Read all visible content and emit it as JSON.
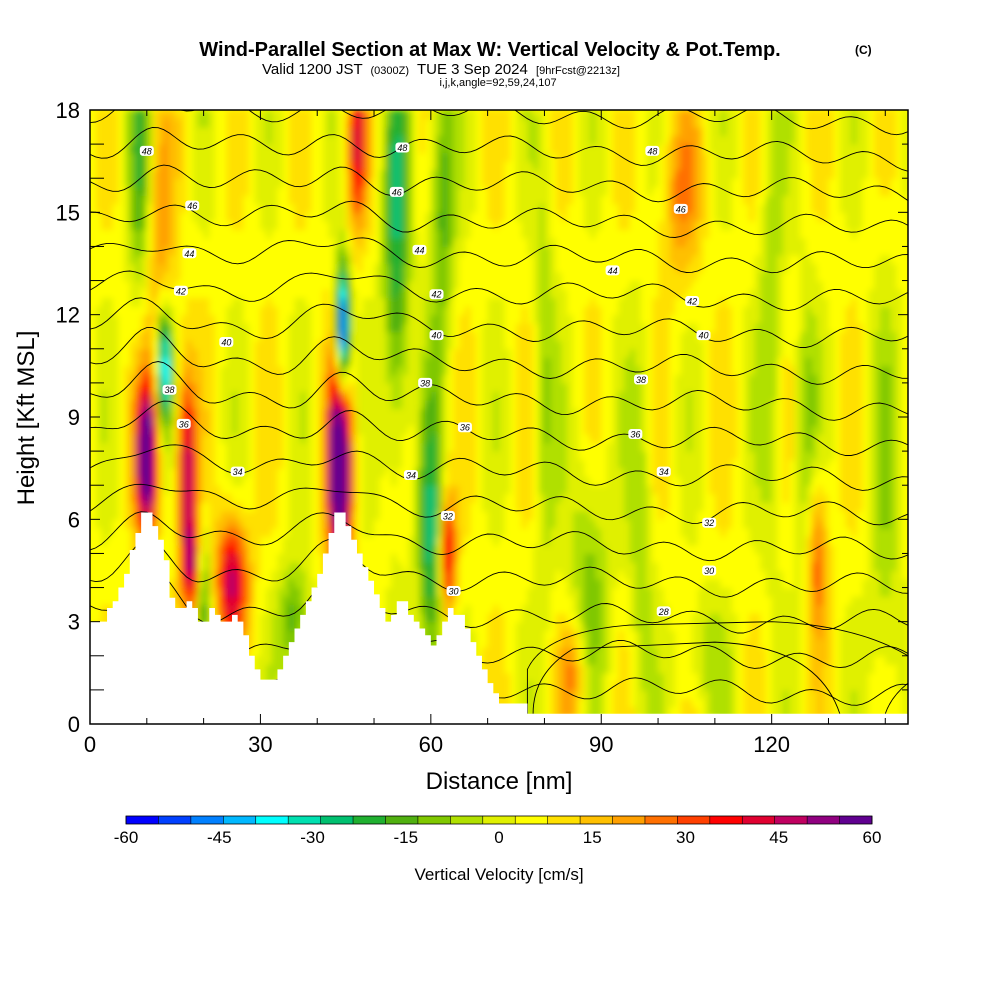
{
  "chart_data": {
    "type": "heatmap",
    "title": "Wind-Parallel Section at Max W: Vertical Velocity & Pot.Temp.",
    "title_mark": "(C)",
    "subtitle_prefix": "Valid 1200 JST",
    "subtitle_utc": "(0300Z)",
    "subtitle_date": "TUE 3 Sep 2024",
    "subtitle_fcst": "[9hrFcst@2213z]",
    "meta_line": "i,j,k,angle=92,59,24,107",
    "xlabel": "Distance [nm]",
    "ylabel": "Height [Kft MSL]",
    "xlim": [
      0,
      144
    ],
    "ylim": [
      0,
      18
    ],
    "x_ticks": [
      "0",
      "30",
      "60",
      "90",
      "120"
    ],
    "x_tick_values": [
      0,
      30,
      60,
      90,
      120
    ],
    "y_ticks": [
      "0",
      "3",
      "6",
      "9",
      "12",
      "15",
      "18"
    ],
    "y_tick_values": [
      0,
      3,
      6,
      9,
      12,
      15,
      18
    ],
    "colorbar": {
      "label": "Vertical Velocity [cm/s]",
      "min": -60,
      "max": 60,
      "tick_labels": [
        "-60",
        "-45",
        "-30",
        "-15",
        "0",
        "15",
        "30",
        "45",
        "60"
      ],
      "tick_values": [
        -60,
        -45,
        -30,
        -15,
        0,
        15,
        30,
        45,
        60
      ],
      "colors": [
        "#0000ff",
        "#0040ff",
        "#0080ff",
        "#00b8ff",
        "#00ffff",
        "#00e0b0",
        "#00c070",
        "#20b030",
        "#50b010",
        "#80c800",
        "#b0e000",
        "#e0f000",
        "#ffff00",
        "#ffe000",
        "#ffc000",
        "#ffa000",
        "#ff7000",
        "#ff4000",
        "#ff0000",
        "#e00030",
        "#c00060",
        "#900080",
        "#600090"
      ]
    },
    "terrain": [
      [
        0,
        3
      ],
      [
        2,
        3
      ],
      [
        3,
        3.4
      ],
      [
        4,
        3.6
      ],
      [
        5,
        4
      ],
      [
        6,
        4.4
      ],
      [
        7,
        5.1
      ],
      [
        8,
        5.6
      ],
      [
        9,
        6.2
      ],
      [
        10,
        6.2
      ],
      [
        11,
        5.8
      ],
      [
        12,
        5.4
      ],
      [
        13,
        4.8
      ],
      [
        14,
        3.7
      ],
      [
        15,
        3.4
      ],
      [
        16,
        3.4
      ],
      [
        17,
        3.6
      ],
      [
        18,
        3.4
      ],
      [
        19,
        3
      ],
      [
        20,
        3
      ],
      [
        21,
        3.4
      ],
      [
        22,
        3.2
      ],
      [
        23,
        3
      ],
      [
        24,
        3
      ],
      [
        25,
        3.2
      ],
      [
        26,
        3
      ],
      [
        27,
        2.6
      ],
      [
        28,
        2
      ],
      [
        29,
        1.6
      ],
      [
        30,
        1.3
      ],
      [
        31,
        1.3
      ],
      [
        32,
        1.3
      ],
      [
        33,
        1.6
      ],
      [
        34,
        2
      ],
      [
        35,
        2.4
      ],
      [
        36,
        2.8
      ],
      [
        37,
        3.2
      ],
      [
        38,
        3.6
      ],
      [
        39,
        4
      ],
      [
        40,
        4.4
      ],
      [
        41,
        5
      ],
      [
        42,
        5.6
      ],
      [
        43,
        6.2
      ],
      [
        44,
        6.2
      ],
      [
        45,
        5.8
      ],
      [
        46,
        5.4
      ],
      [
        47,
        5
      ],
      [
        48,
        4.6
      ],
      [
        49,
        4.2
      ],
      [
        50,
        3.8
      ],
      [
        51,
        3.4
      ],
      [
        52,
        3
      ],
      [
        53,
        3.2
      ],
      [
        54,
        3.6
      ],
      [
        55,
        3.6
      ],
      [
        56,
        3.2
      ],
      [
        57,
        3
      ],
      [
        58,
        2.8
      ],
      [
        59,
        2.6
      ],
      [
        60,
        2.3
      ],
      [
        61,
        2.6
      ],
      [
        62,
        3
      ],
      [
        63,
        3.4
      ],
      [
        64,
        3.2
      ],
      [
        65,
        3.2
      ],
      [
        66,
        2.8
      ],
      [
        67,
        2.4
      ],
      [
        68,
        2
      ],
      [
        69,
        1.6
      ],
      [
        70,
        1.2
      ],
      [
        71,
        0.9
      ],
      [
        72,
        0.6
      ],
      [
        73,
        0.6
      ],
      [
        74,
        0.6
      ],
      [
        75,
        0.6
      ],
      [
        76,
        0.6
      ],
      [
        77,
        0.3
      ],
      [
        144,
        0.3
      ]
    ],
    "theta_labels": [
      {
        "value": "48",
        "x": 10,
        "y": 16.8
      },
      {
        "value": "48",
        "x": 55,
        "y": 16.9
      },
      {
        "value": "48",
        "x": 99,
        "y": 16.8
      },
      {
        "value": "46",
        "x": 18,
        "y": 15.2
      },
      {
        "value": "46",
        "x": 54,
        "y": 15.6
      },
      {
        "value": "46",
        "x": 104,
        "y": 15.1
      },
      {
        "value": "44",
        "x": 17.5,
        "y": 13.8
      },
      {
        "value": "44",
        "x": 58,
        "y": 13.9
      },
      {
        "value": "44",
        "x": 92,
        "y": 13.3
      },
      {
        "value": "42",
        "x": 16,
        "y": 12.7
      },
      {
        "value": "42",
        "x": 61,
        "y": 12.6
      },
      {
        "value": "42",
        "x": 106,
        "y": 12.4
      },
      {
        "value": "40",
        "x": 24,
        "y": 11.2
      },
      {
        "value": "40",
        "x": 61,
        "y": 11.4
      },
      {
        "value": "40",
        "x": 108,
        "y": 11.4
      },
      {
        "value": "38",
        "x": 14,
        "y": 9.8
      },
      {
        "value": "38",
        "x": 59,
        "y": 10.0
      },
      {
        "value": "38",
        "x": 97,
        "y": 10.1
      },
      {
        "value": "36",
        "x": 16.5,
        "y": 8.8
      },
      {
        "value": "36",
        "x": 66,
        "y": 8.7
      },
      {
        "value": "36",
        "x": 96,
        "y": 8.5
      },
      {
        "value": "34",
        "x": 26,
        "y": 7.4
      },
      {
        "value": "34",
        "x": 56.5,
        "y": 7.3
      },
      {
        "value": "34",
        "x": 101,
        "y": 7.4
      },
      {
        "value": "32",
        "x": 63,
        "y": 6.1
      },
      {
        "value": "32",
        "x": 109,
        "y": 5.9
      },
      {
        "value": "30",
        "x": 64,
        "y": 3.9
      },
      {
        "value": "30",
        "x": 109,
        "y": 4.5
      },
      {
        "value": "28",
        "x": 101,
        "y": 3.3
      }
    ]
  }
}
